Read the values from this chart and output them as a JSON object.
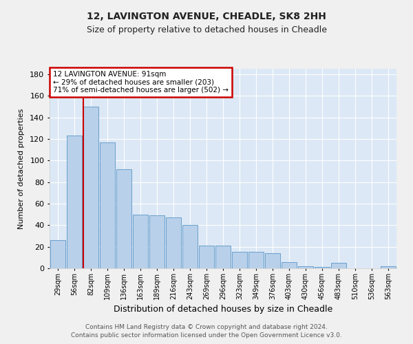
{
  "title1": "12, LAVINGTON AVENUE, CHEADLE, SK8 2HH",
  "title2": "Size of property relative to detached houses in Cheadle",
  "xlabel": "Distribution of detached houses by size in Cheadle",
  "ylabel": "Number of detached properties",
  "categories": [
    "29sqm",
    "56sqm",
    "82sqm",
    "109sqm",
    "136sqm",
    "163sqm",
    "189sqm",
    "216sqm",
    "243sqm",
    "269sqm",
    "296sqm",
    "323sqm",
    "349sqm",
    "376sqm",
    "403sqm",
    "430sqm",
    "456sqm",
    "483sqm",
    "510sqm",
    "536sqm",
    "563sqm"
  ],
  "bar_heights": [
    26,
    123,
    150,
    117,
    92,
    50,
    49,
    47,
    40,
    21,
    21,
    15,
    15,
    14,
    6,
    2,
    1,
    5,
    0,
    0,
    2
  ],
  "bar_color": "#b8d0ea",
  "bar_edge_color": "#6aa0cc",
  "red_line_index": 2,
  "property_sqm": 91,
  "annotation_title": "12 LAVINGTON AVENUE: 91sqm",
  "annotation_line1": "← 29% of detached houses are smaller (203)",
  "annotation_line2": "71% of semi-detached houses are larger (502) →",
  "annotation_box_color": "#ffffff",
  "annotation_box_edge": "#cc0000",
  "ylim": [
    0,
    185
  ],
  "yticks": [
    0,
    20,
    40,
    60,
    80,
    100,
    120,
    140,
    160,
    180
  ],
  "footer1": "Contains HM Land Registry data © Crown copyright and database right 2024.",
  "footer2": "Contains public sector information licensed under the Open Government Licence v3.0.",
  "bg_color": "#dce8f5",
  "fig_bg_color": "#f0f0f0",
  "grid_color": "#ffffff",
  "red_line_color": "#cc0000",
  "title1_fontsize": 10,
  "title2_fontsize": 9,
  "ylabel_fontsize": 8,
  "xlabel_fontsize": 9,
  "tick_fontsize": 7,
  "footer_fontsize": 6.5
}
